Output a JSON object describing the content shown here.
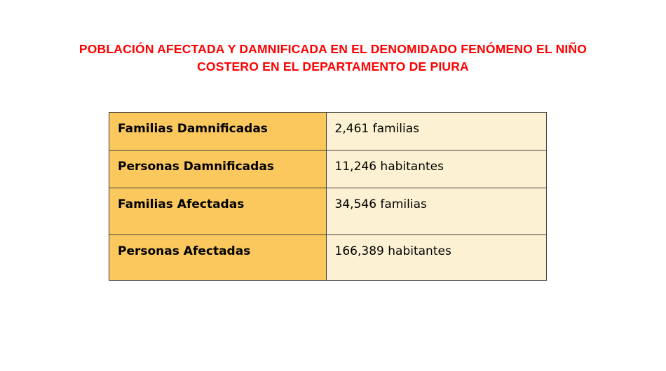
{
  "title": {
    "line1": "POBLACIÓN AFECTADA Y DAMNIFICADA EN EL DENOMIDADO  FENÓMENO EL NIÑO",
    "line2": "COSTERO EN EL DEPARTAMENTO DE PIURA",
    "color": "#FF0000"
  },
  "table": {
    "rows": [
      {
        "label": "Familias Damnificadas",
        "value": "2,461 familias"
      },
      {
        "label": "Personas Damnificadas",
        "value": "11,246 habitantes"
      },
      {
        "label": "Familias Afectadas",
        "value": "34,546 familias"
      },
      {
        "label": "Personas Afectadas",
        "value": "166,389 habitantes"
      }
    ],
    "label_column_bg": "#FAC85C",
    "value_column_bg": "#FCF1D2",
    "border_color": "#404040"
  }
}
